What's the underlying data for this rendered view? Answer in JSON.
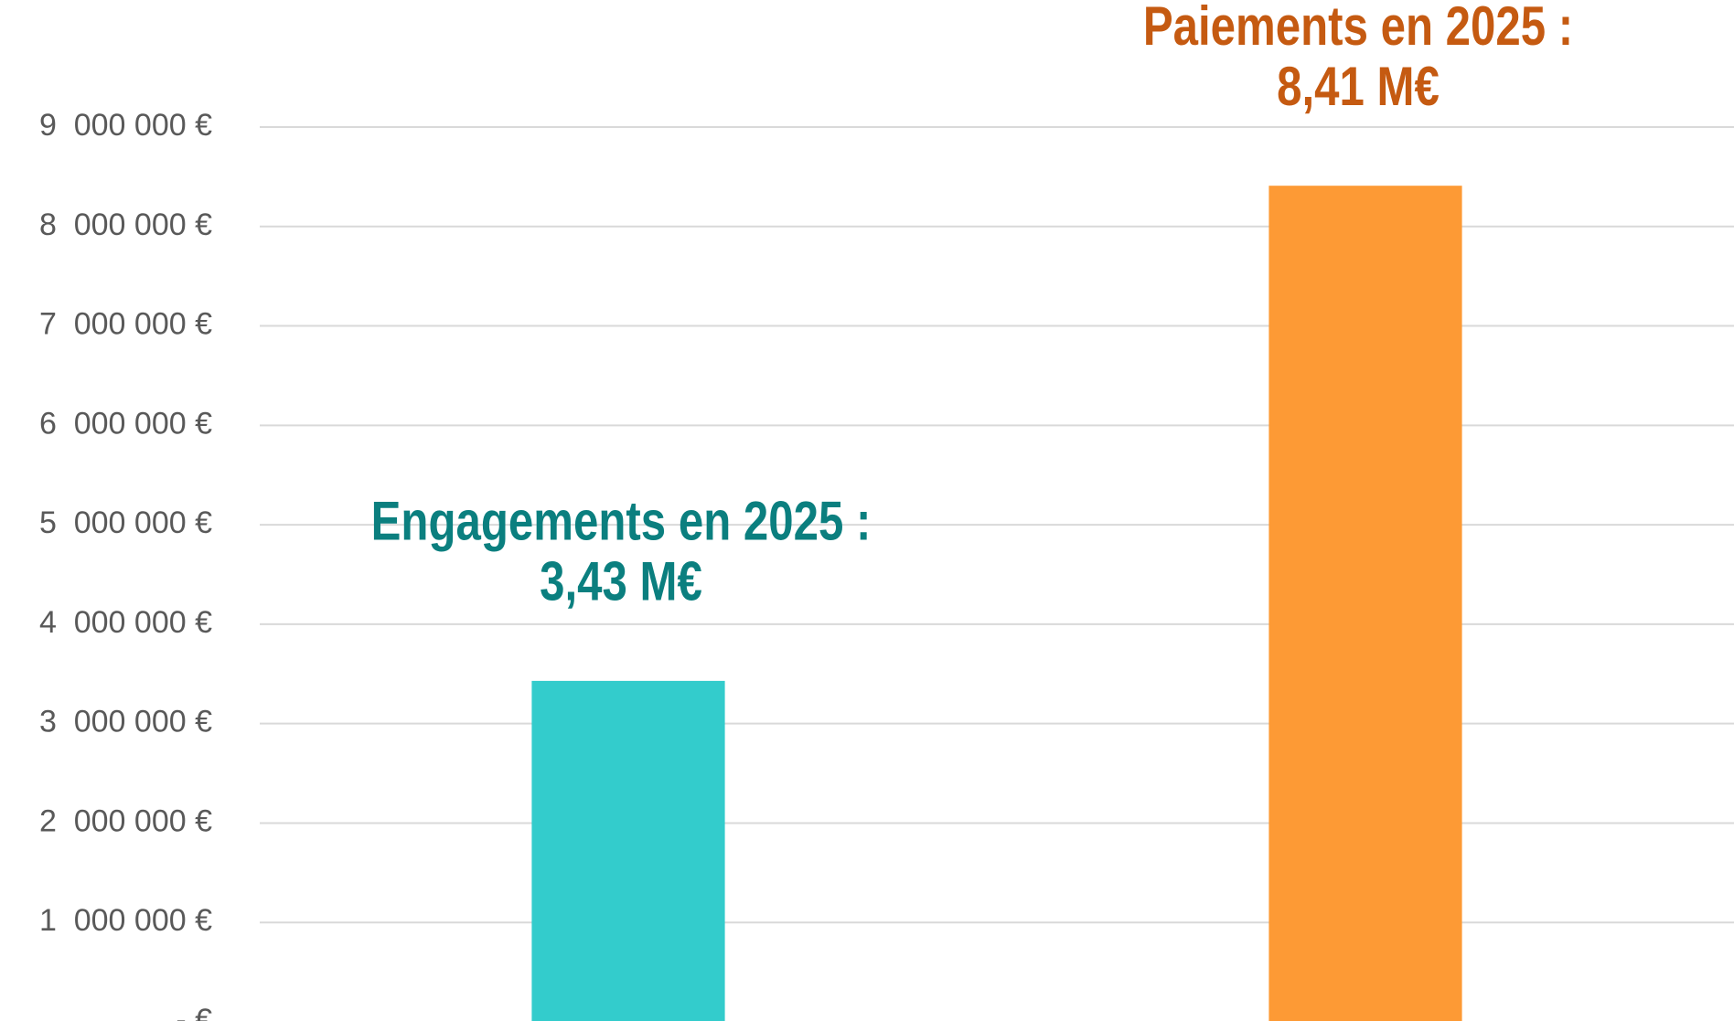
{
  "chart_data": {
    "type": "bar",
    "categories": [
      "Engagements en 2025 :",
      "Paiements en 2025 :"
    ],
    "values": [
      3430000,
      8410000
    ],
    "value_labels": [
      "3,43 M€",
      "8,41 M€"
    ],
    "colors": [
      "#33cccc",
      "#fd9a35"
    ],
    "label_colors": [
      "#0b7f7f",
      "#c55a11"
    ],
    "ylim": [
      0,
      9000000
    ],
    "yticks": [
      {
        "value": 0,
        "label": "- €"
      },
      {
        "value": 1000000,
        "label": "1  000 000 €"
      },
      {
        "value": 2000000,
        "label": "2  000 000 €"
      },
      {
        "value": 3000000,
        "label": "3  000 000 €"
      },
      {
        "value": 4000000,
        "label": "4  000 000 €"
      },
      {
        "value": 5000000,
        "label": "5  000 000 €"
      },
      {
        "value": 6000000,
        "label": "6  000 000 €"
      },
      {
        "value": 7000000,
        "label": "7  000 000 €"
      },
      {
        "value": 8000000,
        "label": "8  000 000 €"
      },
      {
        "value": 9000000,
        "label": "9  000 000 €"
      }
    ],
    "grid": true
  }
}
